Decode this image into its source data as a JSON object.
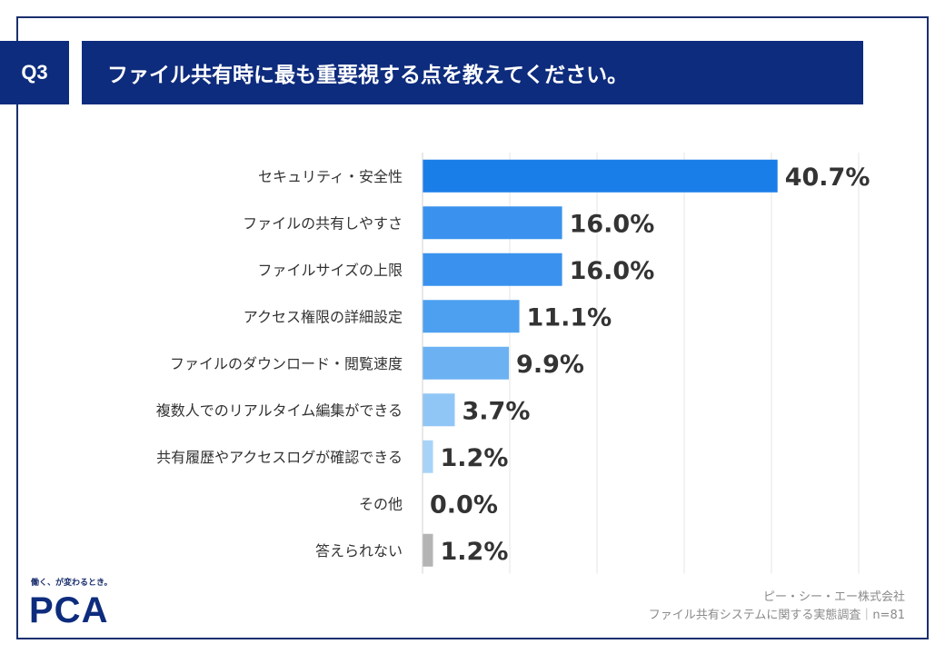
{
  "question": {
    "number": "Q3",
    "title": "ファイル共有時に最も重要視する点を教えてください。"
  },
  "colors": {
    "header_bg": "#0e2c7d",
    "bar_top": "#1a7ee8",
    "bar_high": "#3a92ee",
    "bar_mid": "#4da0f0",
    "bar_low": "#6cb2f3",
    "bar_small": "#90c6f6",
    "bar_tiny": "#a8d3f8",
    "bar_other": "#b4b4b4",
    "grid": "#e6e6e6"
  },
  "chart_data": {
    "type": "bar",
    "orientation": "horizontal",
    "unit": "%",
    "xlim": [
      0,
      50
    ],
    "grid": true,
    "categories": [
      "セキュリティ・安全性",
      "ファイルの共有しやすさ",
      "ファイルサイズの上限",
      "アクセス権限の詳細設定",
      "ファイルのダウンロード・閲覧速度",
      "複数人でのリアルタイム編集ができる",
      "共有履歴やアクセスログが確認できる",
      "その他",
      "答えられない"
    ],
    "values": [
      40.7,
      16.0,
      16.0,
      11.1,
      9.9,
      3.7,
      1.2,
      0.0,
      1.2
    ],
    "value_labels": [
      "40.7%",
      "16.0%",
      "16.0%",
      "11.1%",
      "9.9%",
      "3.7%",
      "1.2%",
      "0.0%",
      "1.2%"
    ]
  },
  "logo": {
    "tagline": "働く、が変わるとき。",
    "name": "PCA"
  },
  "source": {
    "company": "ピー・シー・エー株式会社",
    "survey": "ファイル共有システムに関する実態調査｜n=81"
  }
}
